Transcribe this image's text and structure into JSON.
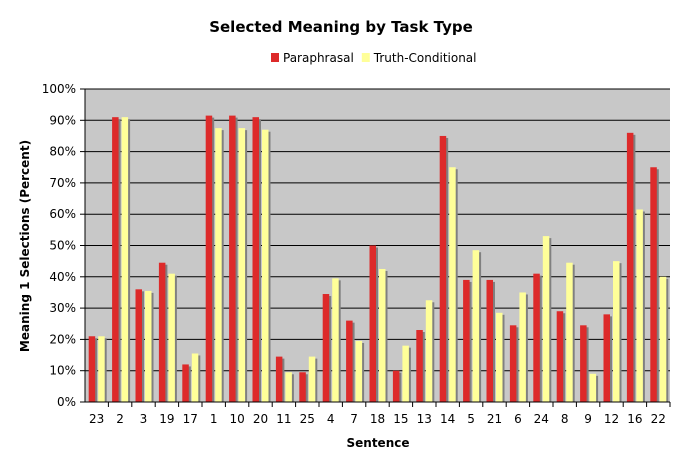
{
  "chart_data": {
    "type": "bar",
    "title": "Selected Meaning by Task Type",
    "xlabel": "Sentence",
    "ylabel": "Meaning 1 Selections (Percent)",
    "ylim": [
      0,
      100
    ],
    "ytick_step": 10,
    "grid": true,
    "legend_position": "top",
    "categories": [
      "23",
      "2",
      "3",
      "19",
      "17",
      "1",
      "10",
      "20",
      "11",
      "25",
      "4",
      "7",
      "18",
      "15",
      "13",
      "14",
      "5",
      "21",
      "6",
      "24",
      "8",
      "9",
      "12",
      "16",
      "22"
    ],
    "series": [
      {
        "name": "Paraphrasal",
        "color": "#dd2a2a",
        "values": [
          21,
          91,
          36,
          44.5,
          12,
          91.5,
          91.5,
          91,
          14.5,
          9.5,
          34.5,
          26,
          50,
          10,
          23,
          85,
          39,
          39,
          24.5,
          41,
          29,
          24.5,
          28,
          86,
          75
        ]
      },
      {
        "name": "Truth-Conditional",
        "color": "#ffff99",
        "values": [
          21,
          91,
          35.5,
          41,
          15.5,
          87.5,
          87.5,
          87,
          9.5,
          14.5,
          39.5,
          19.5,
          42.5,
          18,
          32.5,
          75,
          48.5,
          28.5,
          35,
          53,
          44.5,
          9,
          45,
          61.5,
          40
        ]
      }
    ],
    "colors": {
      "plot_background": "#c8c8c8",
      "gridline": "#000000",
      "shadow": "#808080"
    }
  }
}
